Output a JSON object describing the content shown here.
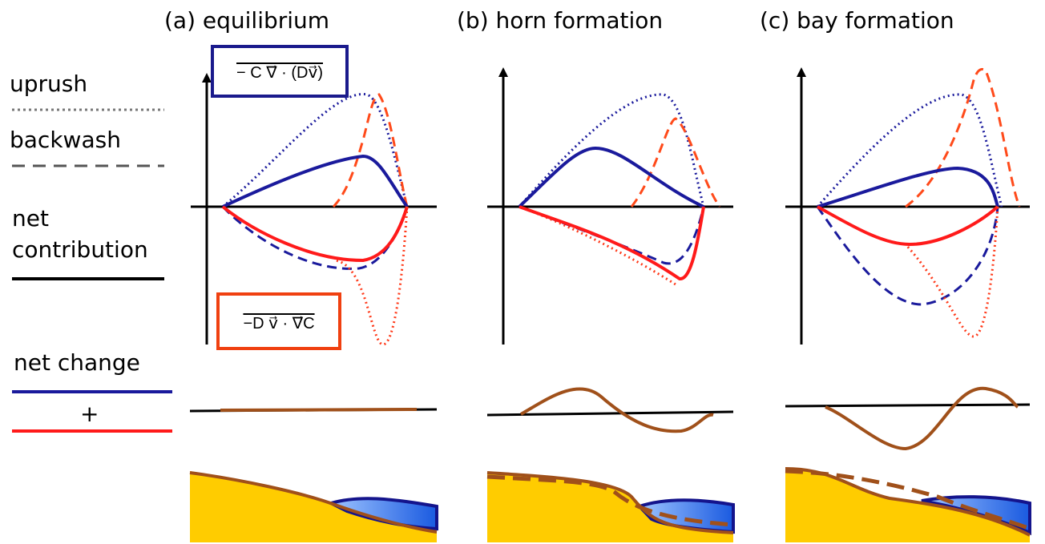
{
  "panels": [
    {
      "title": "(a) equilibrium"
    },
    {
      "title": "(b) horn formation"
    },
    {
      "title": "(c) bay formation"
    }
  ],
  "legend": {
    "uprush": "uprush",
    "backwash": "backwash",
    "net_contribution": [
      "net",
      "contribution"
    ],
    "net_change": "net change",
    "plus": "+"
  },
  "formulas": {
    "advection": "− C ∇⃗ · (Dv⃗)",
    "diffusion": "−D v⃗ · ∇⃗C"
  }
}
